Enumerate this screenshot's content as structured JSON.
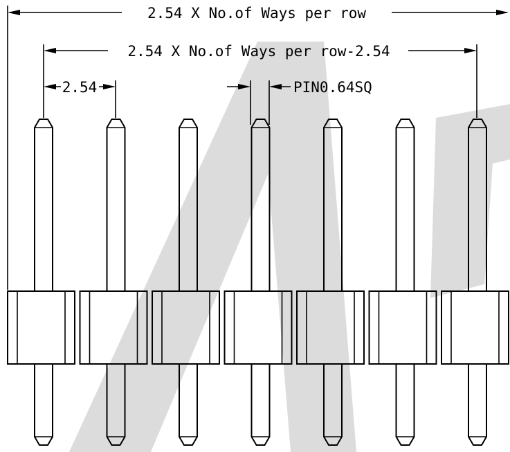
{
  "dimensions": {
    "overall_label": "2.54 X No.of Ways per row",
    "inner_label": "2.54 X No.of Ways per row-2.54",
    "pitch_label": "2.54",
    "pin_label": "PIN0.64SQ"
  },
  "pin_count": 7
}
